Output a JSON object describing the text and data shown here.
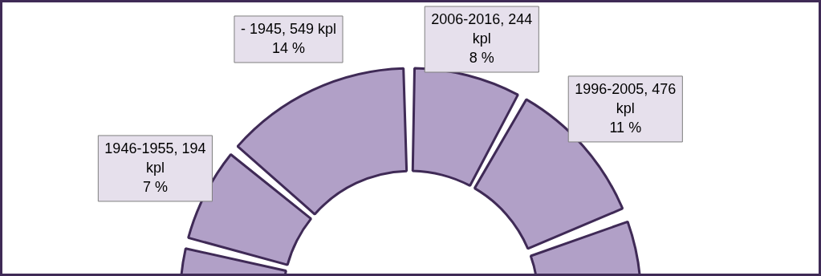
{
  "chart_data": {
    "type": "donut",
    "categories": [
      null,
      "1946-1955",
      "- 1945",
      "2006-2016",
      "1996-2005",
      null
    ],
    "values": [
      15,
      7,
      14,
      8,
      11,
      17
    ],
    "colors": [
      "#b1a0c7",
      "#b1a0c7",
      "#b1a0c7",
      "#b1a0c7",
      "#b1a0c7",
      "#b1a0c7"
    ],
    "value_labels": [
      null,
      ", 194\nkpl\n7 %",
      ", 549 kpl\n14 %",
      ", 244\nkpl\n8 %",
      ", 476\nkpl\n11 %",
      null
    ],
    "legend": false
  }
}
